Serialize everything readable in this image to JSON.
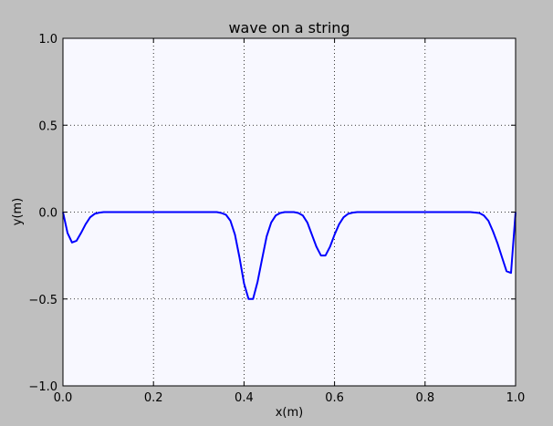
{
  "colors": {
    "figure_background": "#bfbfbf",
    "axes_background": "#f8f8ff",
    "series_line": "#0000ff",
    "grid": "#000000"
  },
  "chart_data": {
    "type": "line",
    "title": "wave on a string",
    "xlabel": "x(m)",
    "ylabel": "y(m)",
    "xlim": [
      0.0,
      1.0
    ],
    "ylim": [
      -1.0,
      1.0
    ],
    "grid": true,
    "x_ticks": [
      0.0,
      0.2,
      0.4,
      0.6,
      0.8,
      1.0
    ],
    "x_tick_labels": [
      "0.0",
      "0.2",
      "0.4",
      "0.6",
      "0.8",
      "1.0"
    ],
    "y_ticks": [
      -1.0,
      -0.5,
      0.0,
      0.5,
      1.0
    ],
    "y_tick_labels": [
      "−1.0",
      "−0.5",
      "0.0",
      "0.5",
      "1.0"
    ],
    "series": [
      {
        "x": [
          0.0,
          0.01,
          0.02,
          0.03,
          0.04,
          0.05,
          0.06,
          0.07,
          0.08,
          0.09,
          0.1,
          0.15,
          0.2,
          0.25,
          0.3,
          0.34,
          0.35,
          0.36,
          0.37,
          0.38,
          0.39,
          0.4,
          0.41,
          0.42,
          0.43,
          0.44,
          0.45,
          0.46,
          0.47,
          0.48,
          0.49,
          0.5,
          0.51,
          0.52,
          0.53,
          0.54,
          0.55,
          0.56,
          0.57,
          0.58,
          0.59,
          0.6,
          0.61,
          0.62,
          0.63,
          0.64,
          0.65,
          0.7,
          0.8,
          0.9,
          0.92,
          0.93,
          0.94,
          0.95,
          0.96,
          0.97,
          0.98,
          0.99,
          1.0
        ],
        "y": [
          0.0,
          -0.12,
          -0.175,
          -0.165,
          -0.12,
          -0.07,
          -0.03,
          -0.01,
          -0.003,
          0.0,
          0.0,
          0.0,
          0.0,
          0.0,
          0.0,
          0.0,
          -0.005,
          -0.015,
          -0.05,
          -0.13,
          -0.26,
          -0.41,
          -0.5,
          -0.5,
          -0.4,
          -0.27,
          -0.14,
          -0.06,
          -0.02,
          -0.005,
          0.0,
          0.0,
          0.0,
          -0.005,
          -0.02,
          -0.06,
          -0.13,
          -0.2,
          -0.25,
          -0.25,
          -0.2,
          -0.13,
          -0.07,
          -0.03,
          -0.01,
          -0.003,
          0.0,
          0.0,
          0.0,
          0.0,
          -0.005,
          -0.02,
          -0.05,
          -0.11,
          -0.18,
          -0.26,
          -0.34,
          -0.35,
          0.0
        ]
      }
    ]
  }
}
